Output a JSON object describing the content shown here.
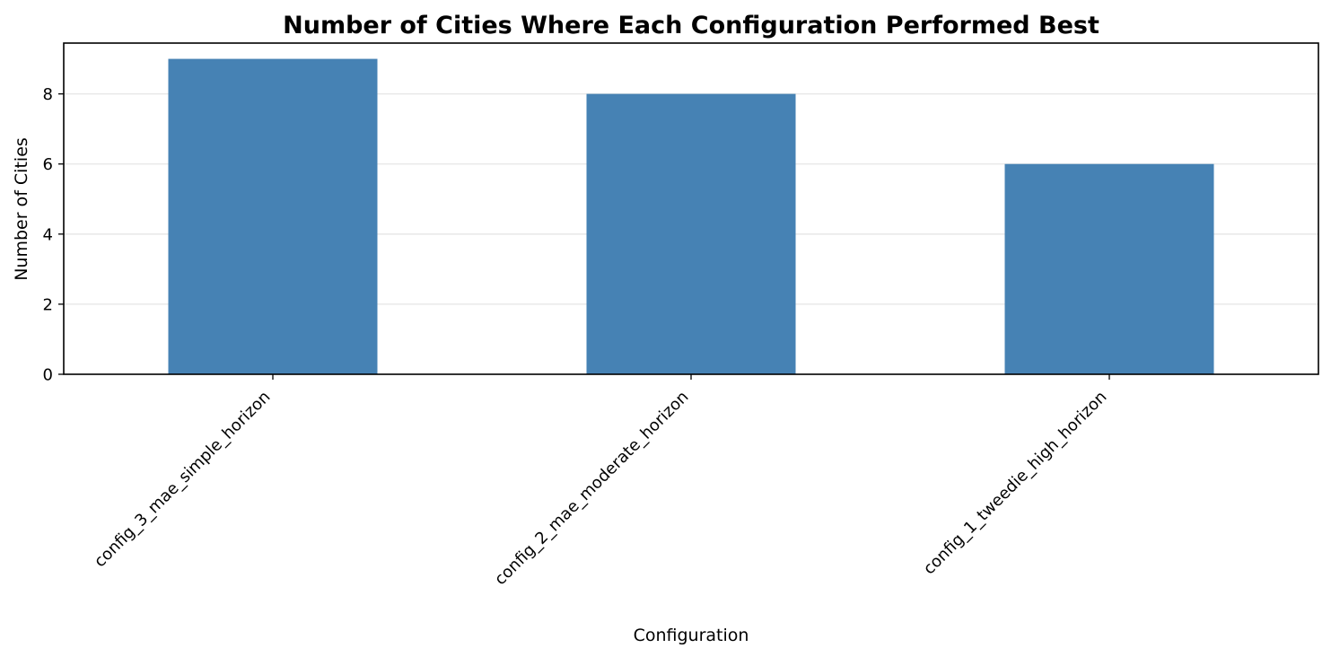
{
  "chart_data": {
    "type": "bar",
    "title": "Number of Cities Where Each Configuration Performed Best",
    "xlabel": "Configuration",
    "ylabel": "Number of Cities",
    "categories": [
      "config_3_mae_simple_horizon",
      "config_2_mae_moderate_horizon",
      "config_1_tweedie_high_horizon"
    ],
    "values": [
      9,
      8,
      6
    ],
    "yticks": [
      0,
      2,
      4,
      6,
      8
    ],
    "ylim": [
      0,
      9.45
    ],
    "grid": "y",
    "legend": "none",
    "bar_color": "#4682b4",
    "grid_color": "#e6e6e6"
  }
}
